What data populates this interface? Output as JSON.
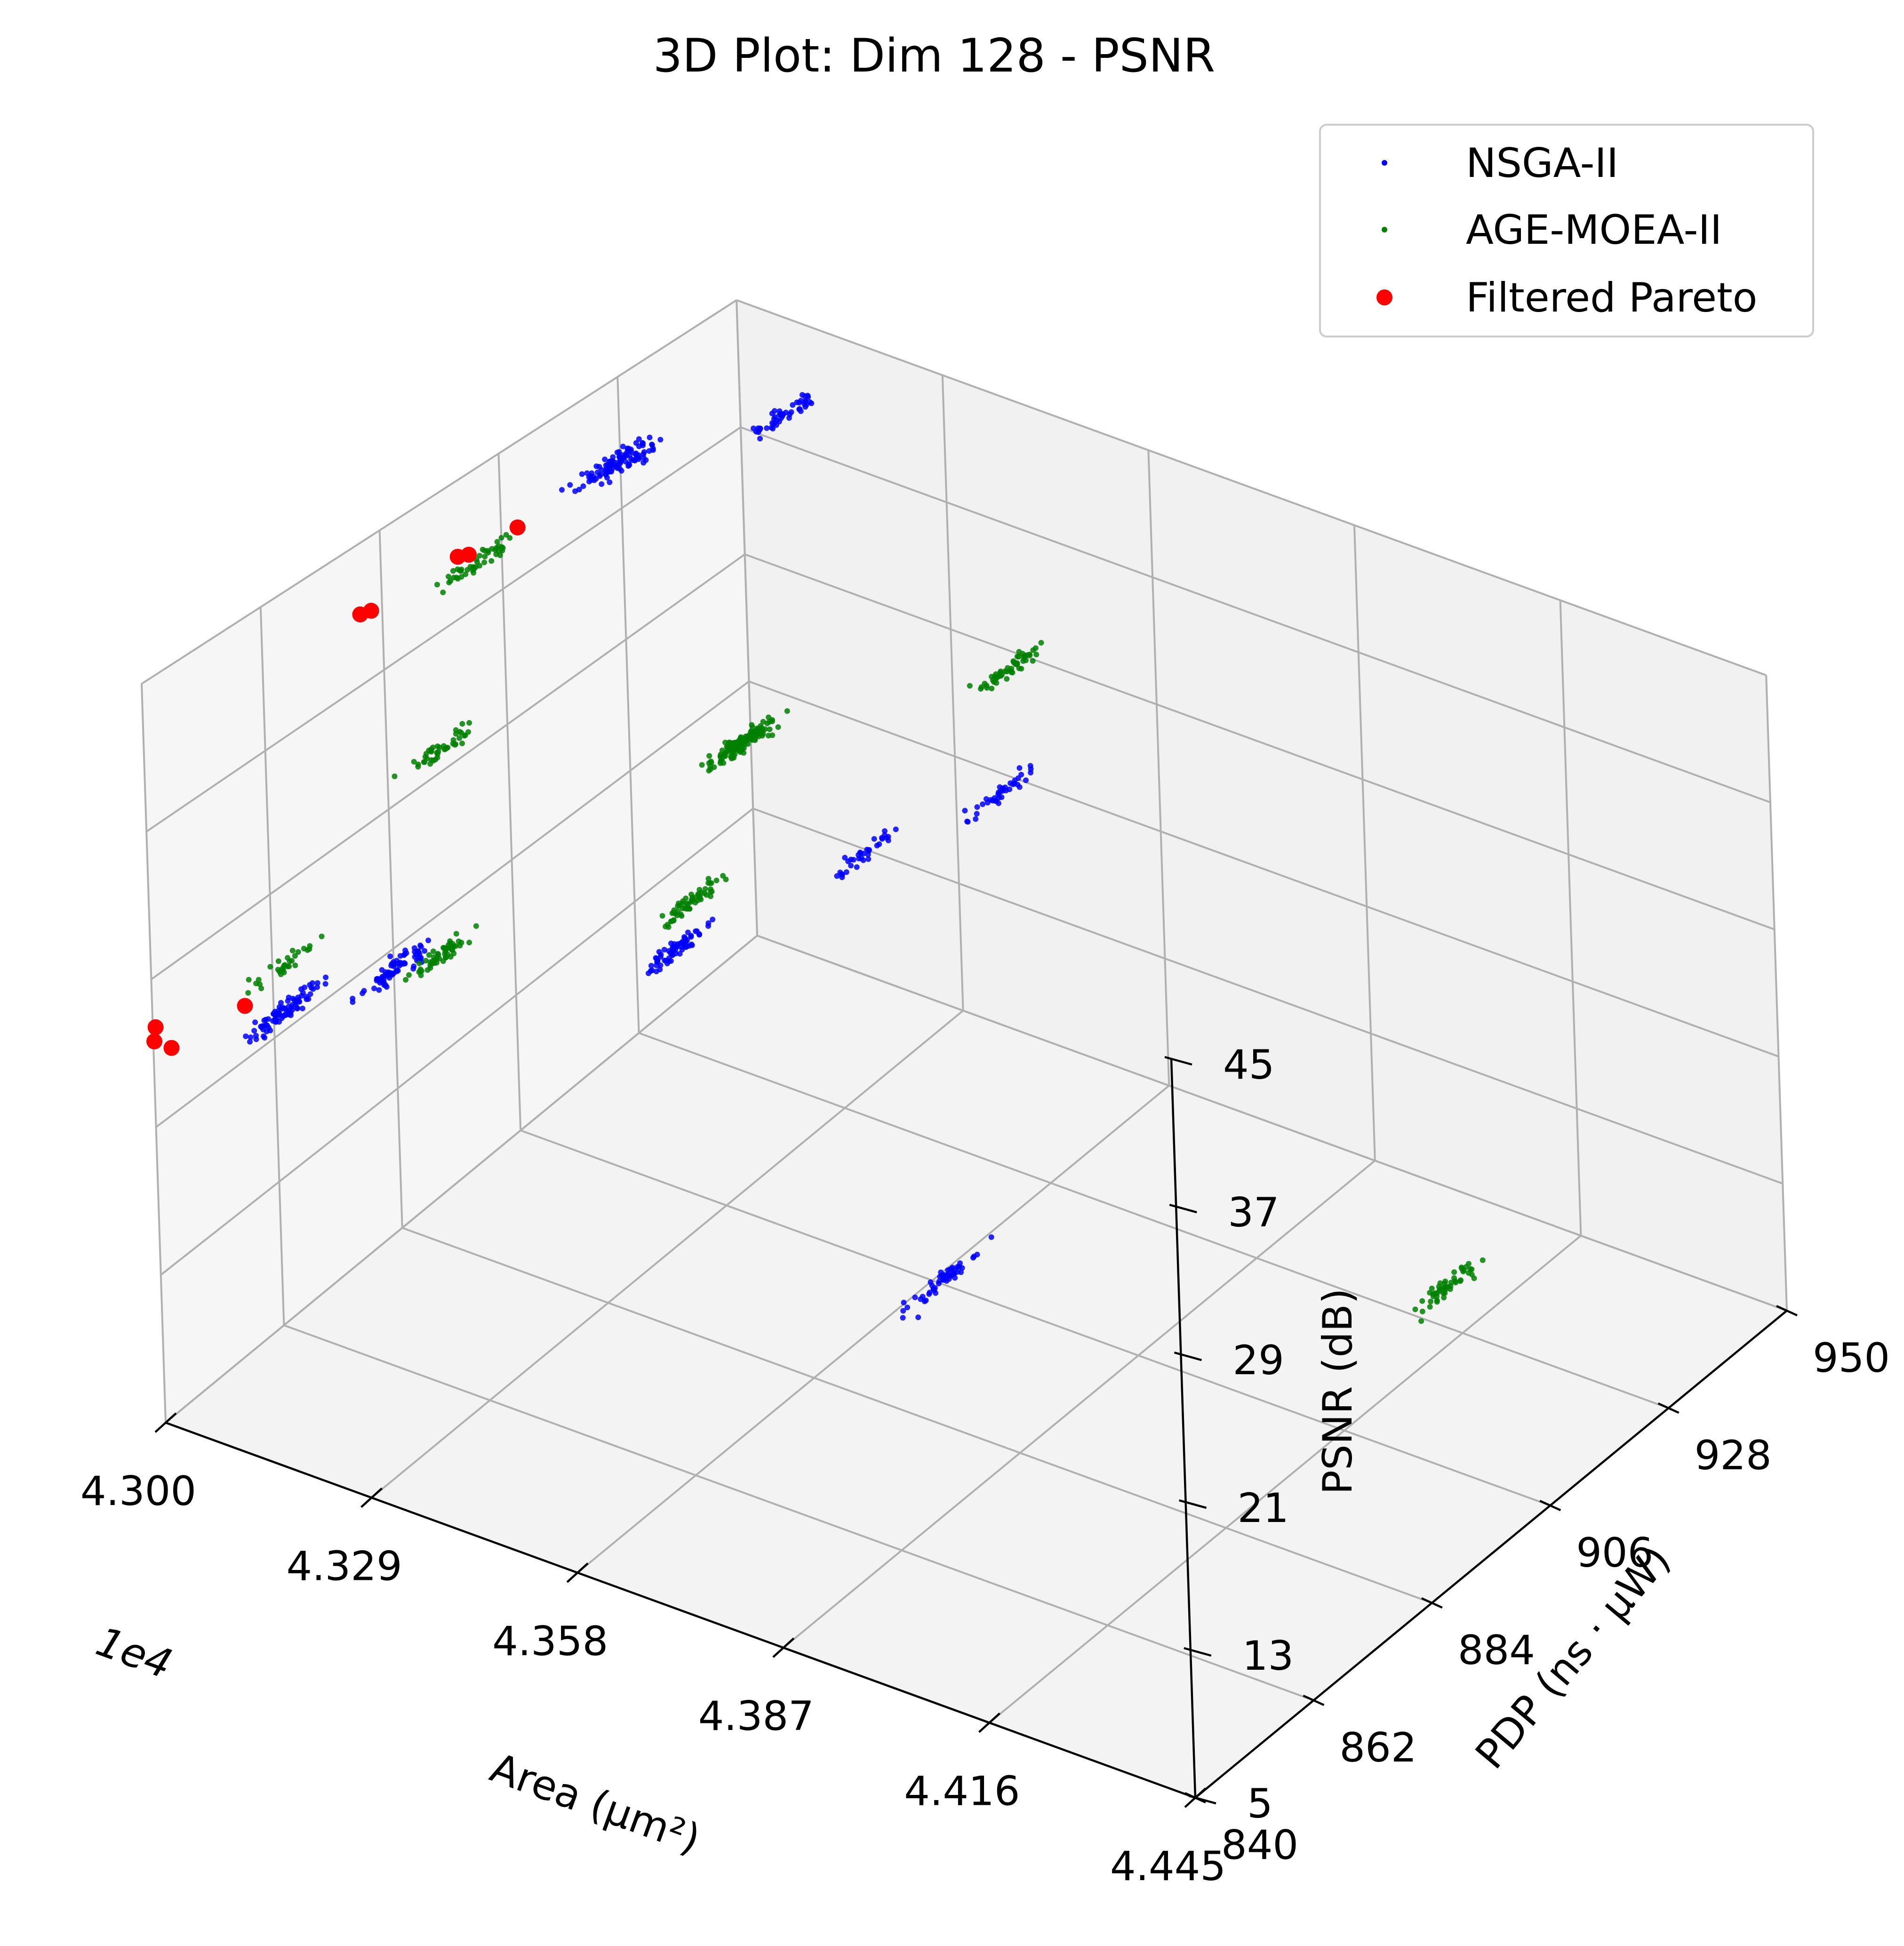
{
  "chart_data": {
    "type": "scatter",
    "title": "3D Plot: Dim 128 - PSNR",
    "xlabel": "Area (μm²)",
    "x_offset_text": "1e4",
    "ylabel": "PDP (ns · μW)",
    "zlabel": "PSNR (dB)",
    "xlim": [
      4.3,
      4.445
    ],
    "ylim": [
      840,
      950
    ],
    "zlim": [
      5,
      45
    ],
    "x_ticks": [
      "4.300",
      "4.329",
      "4.358",
      "4.387",
      "4.416",
      "4.445"
    ],
    "y_ticks": [
      "840",
      "862",
      "884",
      "906",
      "928",
      "950"
    ],
    "z_ticks": [
      "5",
      "13",
      "21",
      "29",
      "37",
      "45"
    ],
    "grid": true,
    "legend_position": "top-right",
    "colors": {
      "NSGA-II": "#0000ff",
      "AGE-MOEA-II": "#008000",
      "Filtered Pareto": "#ff0000"
    },
    "series": [
      {
        "name": "NSGA-II",
        "color": "#0000ff",
        "clusters": [
          {
            "x": 4.301,
            "y": 925,
            "z": 40.5,
            "n": 70
          },
          {
            "x": 4.301,
            "y": 928,
            "z": 40.0,
            "n": 45
          },
          {
            "x": 4.31,
            "y": 945,
            "z": 40.5,
            "n": 50
          },
          {
            "x": 4.301,
            "y": 862,
            "z": 22.5,
            "n": 90
          },
          {
            "x": 4.305,
            "y": 878,
            "z": 22.0,
            "n": 75
          },
          {
            "x": 4.33,
            "y": 897,
            "z": 22.5,
            "n": 70
          },
          {
            "x": 4.335,
            "y": 925,
            "z": 22.0,
            "n": 35
          },
          {
            "x": 4.34,
            "y": 944,
            "z": 22.0,
            "n": 40
          },
          {
            "x": 4.36,
            "y": 905,
            "z": 5.5,
            "n": 55
          }
        ]
      },
      {
        "name": "AGE-MOEA-II",
        "color": "#008000",
        "clusters": [
          {
            "x": 4.301,
            "y": 900,
            "z": 40.0,
            "n": 50
          },
          {
            "x": 4.303,
            "y": 890,
            "z": 31.5,
            "n": 45
          },
          {
            "x": 4.33,
            "y": 910,
            "z": 31.5,
            "n": 150
          },
          {
            "x": 4.345,
            "y": 940,
            "z": 31.5,
            "n": 55
          },
          {
            "x": 4.302,
            "y": 862,
            "z": 25.5,
            "n": 30
          },
          {
            "x": 4.31,
            "y": 880,
            "z": 23.0,
            "n": 55
          },
          {
            "x": 4.33,
            "y": 900,
            "z": 24.5,
            "n": 60
          },
          {
            "x": 4.41,
            "y": 933,
            "z": 5.5,
            "n": 50
          }
        ]
      },
      {
        "name": "Filtered Pareto",
        "color": "#ff0000",
        "points": [
          {
            "x": 4.3,
            "y": 840.5,
            "z": 26.3
          },
          {
            "x": 4.3,
            "y": 840.2,
            "z": 25.6
          },
          {
            "x": 4.301,
            "y": 842.0,
            "z": 25.0
          },
          {
            "x": 4.303,
            "y": 853.0,
            "z": 25.2
          },
          {
            "x": 4.3,
            "y": 880.0,
            "z": 41.0
          },
          {
            "x": 4.3,
            "y": 882.0,
            "z": 40.8
          },
          {
            "x": 4.3,
            "y": 898.0,
            "z": 40.6
          },
          {
            "x": 4.3,
            "y": 900.0,
            "z": 40.3
          },
          {
            "x": 4.3,
            "y": 909.0,
            "z": 40.0
          }
        ]
      }
    ]
  }
}
